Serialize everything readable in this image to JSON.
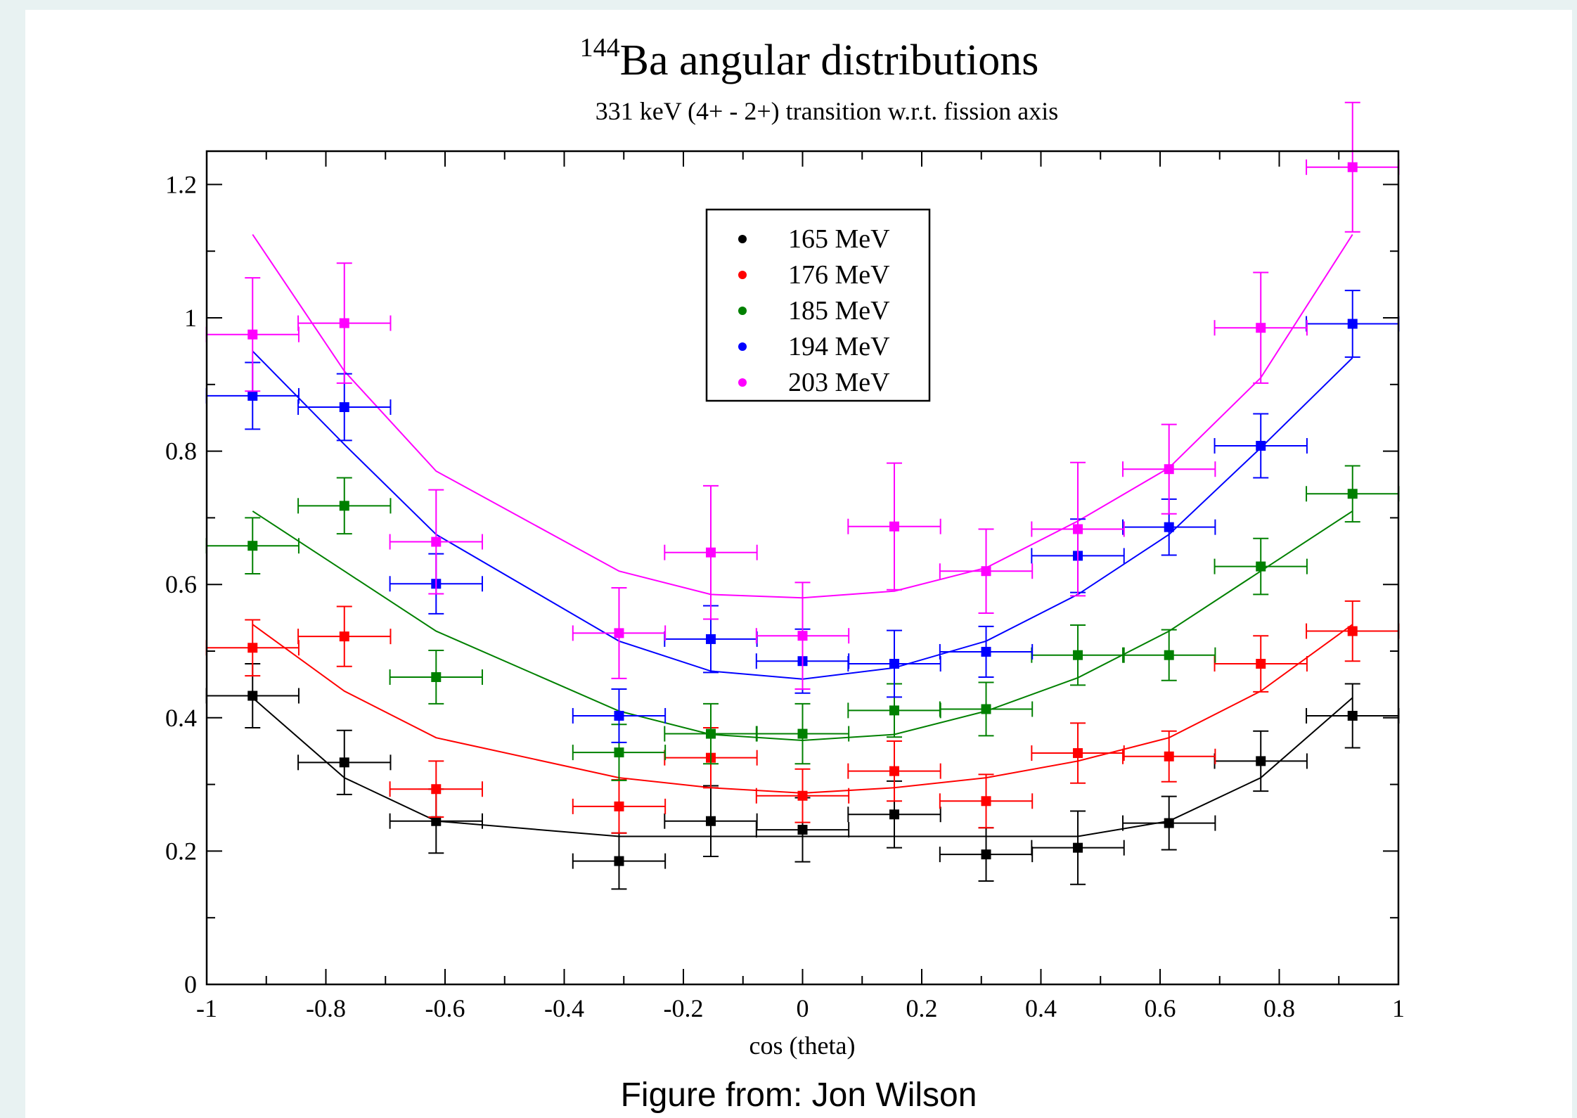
{
  "caption": "Figure from: Jon Wilson",
  "chart_data": {
    "type": "scatter",
    "title_sup": "144",
    "title": "Ba angular distributions",
    "subtitle": "331 keV (4+ - 2+) transition w.r.t. fission axis",
    "xlabel": "cos (theta)",
    "ylabel": "",
    "xlim": [
      -1,
      1
    ],
    "ylim": [
      0,
      1.25
    ],
    "xticks": [
      -1,
      -0.8,
      -0.6,
      -0.4,
      -0.2,
      0,
      0.2,
      0.4,
      0.6,
      0.8,
      1
    ],
    "xtick_labels": [
      "-1",
      "-0.8",
      "-0.6",
      "-0.4",
      "-0.2",
      "0",
      "0.2",
      "0.4",
      "0.6",
      "0.8",
      "1"
    ],
    "yticks": [
      0,
      0.2,
      0.4,
      0.6,
      0.8,
      1,
      1.2
    ],
    "ytick_labels": [
      "0",
      "0.2",
      "0.4",
      "0.6",
      "0.8",
      "1",
      "1.2"
    ],
    "x_error": 0.0775,
    "x": [
      -0.923,
      -0.769,
      -0.615,
      -0.308,
      -0.154,
      0.0,
      0.154,
      0.308,
      0.462,
      0.615,
      0.769,
      0.923
    ],
    "fit_x": [
      -0.923,
      -0.769,
      -0.615,
      -0.308,
      -0.154,
      0.0,
      0.154,
      0.308,
      0.462,
      0.615,
      0.769,
      0.923
    ],
    "legend_position": "upper-center",
    "series": [
      {
        "name": "165 MeV",
        "color": "#000000",
        "y": [
          0.433,
          0.333,
          0.245,
          0.185,
          0.245,
          0.232,
          0.255,
          0.195,
          0.205,
          0.242,
          0.335,
          0.403
        ],
        "err": [
          0.048,
          0.048,
          0.048,
          0.042,
          0.053,
          0.048,
          0.05,
          0.04,
          0.055,
          0.04,
          0.045,
          0.048
        ],
        "fit": [
          0.43,
          0.31,
          0.245,
          0.222,
          0.222,
          0.222,
          0.222,
          0.222,
          0.222,
          0.245,
          0.31,
          0.43
        ]
      },
      {
        "name": "176 MeV",
        "color": "#ff0000",
        "y": [
          0.505,
          0.522,
          0.293,
          0.267,
          0.34,
          0.283,
          0.32,
          0.275,
          0.347,
          0.342,
          0.481,
          0.53
        ],
        "err": [
          0.042,
          0.045,
          0.042,
          0.04,
          0.045,
          0.04,
          0.045,
          0.04,
          0.045,
          0.038,
          0.042,
          0.045
        ],
        "fit": [
          0.54,
          0.44,
          0.37,
          0.31,
          0.295,
          0.287,
          0.295,
          0.31,
          0.335,
          0.37,
          0.44,
          0.54
        ]
      },
      {
        "name": "185 MeV",
        "color": "#008000",
        "y": [
          0.658,
          0.718,
          0.461,
          0.348,
          0.376,
          0.376,
          0.411,
          0.413,
          0.494,
          0.494,
          0.627,
          0.736
        ],
        "err": [
          0.042,
          0.042,
          0.04,
          0.042,
          0.045,
          0.045,
          0.04,
          0.04,
          0.045,
          0.038,
          0.042,
          0.042
        ],
        "fit": [
          0.71,
          0.62,
          0.53,
          0.41,
          0.375,
          0.366,
          0.375,
          0.41,
          0.46,
          0.53,
          0.62,
          0.71
        ]
      },
      {
        "name": "194 MeV",
        "color": "#0000ff",
        "y": [
          0.883,
          0.866,
          0.601,
          0.403,
          0.518,
          0.485,
          0.481,
          0.499,
          0.643,
          0.686,
          0.808,
          0.991
        ],
        "err": [
          0.05,
          0.05,
          0.045,
          0.04,
          0.05,
          0.048,
          0.05,
          0.038,
          0.055,
          0.042,
          0.048,
          0.05
        ],
        "fit": [
          0.95,
          0.81,
          0.675,
          0.515,
          0.47,
          0.458,
          0.475,
          0.515,
          0.585,
          0.675,
          0.805,
          0.94
        ]
      },
      {
        "name": "203 MeV",
        "color": "#ff00ff",
        "y": [
          0.975,
          0.992,
          0.664,
          0.527,
          0.648,
          0.523,
          0.687,
          0.62,
          0.683,
          0.773,
          0.985,
          1.226
        ],
        "err": [
          0.085,
          0.09,
          0.078,
          0.068,
          0.1,
          0.08,
          0.095,
          0.063,
          0.1,
          0.067,
          0.083,
          0.097
        ],
        "fit": [
          1.125,
          0.92,
          0.77,
          0.62,
          0.585,
          0.58,
          0.59,
          0.625,
          0.695,
          0.775,
          0.91,
          1.125
        ]
      }
    ]
  }
}
